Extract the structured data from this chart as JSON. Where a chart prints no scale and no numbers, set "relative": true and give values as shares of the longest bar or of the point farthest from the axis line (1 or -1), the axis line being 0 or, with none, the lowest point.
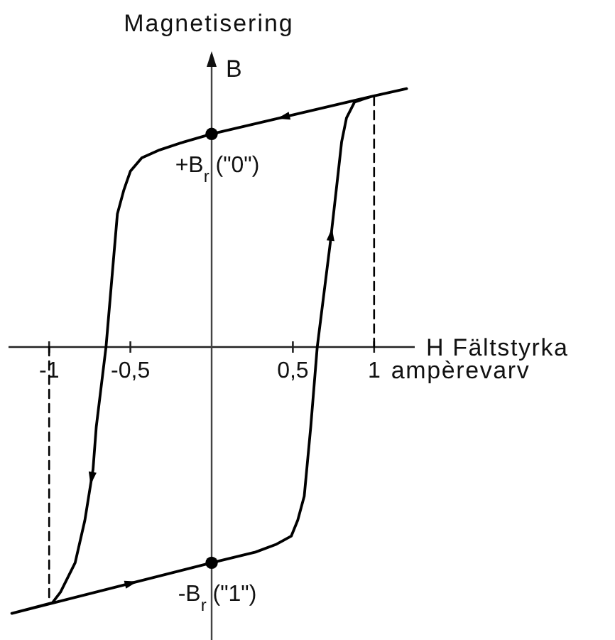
{
  "chart_data": {
    "type": "line",
    "relative": true,
    "xlabel": "H Fältstyrka\nampèrevarv",
    "ylabel": "Magnetisering\nB",
    "xlim": [
      -1.25,
      1.25
    ],
    "xticks": [
      -1,
      {
        "value": -0.5,
        "label": "-0,5"
      },
      {
        "value": 0.5,
        "label": "0,5"
      },
      1
    ],
    "series": [
      {
        "type": "line",
        "color": "#000000",
        "x": [
          1.2,
          0.98,
          0,
          -0.17,
          -0.32,
          -0.43,
          -0.5,
          -0.54,
          -0.58,
          -0.65,
          -0.71,
          -0.73,
          -0.78,
          -0.84,
          -0.93,
          -0.98,
          -1.23,
          0,
          0.27,
          0.4,
          0.49,
          0.53,
          0.57,
          0.61,
          0.65,
          0.73,
          0.78,
          0.8,
          0.83,
          0.88,
          0.98
        ],
        "values": [
          0.97,
          0.94,
          0.8,
          0.77,
          0.74,
          0.71,
          0.66,
          0.59,
          0.5,
          0,
          -0.3,
          -0.46,
          -0.65,
          -0.81,
          -0.92,
          -0.96,
          -1,
          -0.81,
          -0.77,
          -0.74,
          -0.71,
          -0.65,
          -0.56,
          -0.3,
          0,
          0.39,
          0.66,
          0.77,
          0.86,
          0.92,
          0.94
        ]
      },
      {
        "type": "line",
        "color": "#000000",
        "line_style": "dashed",
        "x": [
          1,
          1
        ],
        "values": [
          0,
          0.94
        ]
      },
      {
        "type": "line",
        "color": "#000000",
        "line_style": "dashed",
        "x": [
          -1,
          -1
        ],
        "values": [
          0,
          -0.96
        ]
      },
      {
        "type": "scatter",
        "color": "#000000",
        "marker": "circle",
        "x": [
          0,
          0
        ],
        "values": [
          0.8,
          -0.81
        ]
      }
    ],
    "annotations": [
      {
        "text": "+B$_{r}$ (\"0\")",
        "x": 0,
        "y": 0.8
      },
      {
        "text": "-B$_{r}$ (\"1\")",
        "x": 0,
        "y": -0.81
      }
    ]
  }
}
